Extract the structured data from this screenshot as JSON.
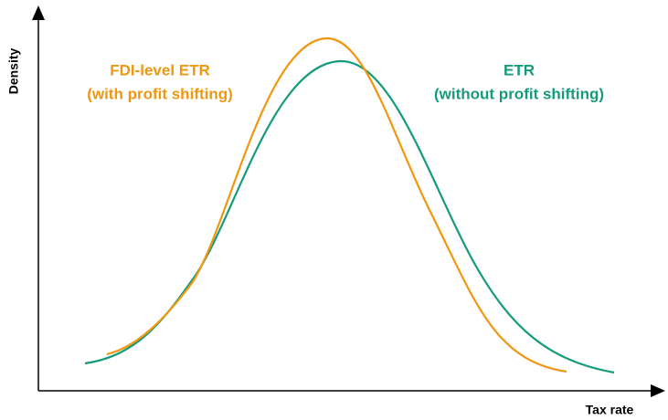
{
  "axes": {
    "y_label": "Density",
    "x_label": "Tax rate"
  },
  "curves": [
    {
      "lines": [
        "FDI-level ETR",
        "(with profit shifting)"
      ]
    },
    {
      "lines": [
        "ETR",
        "(without profit shifting)"
      ]
    }
  ]
}
